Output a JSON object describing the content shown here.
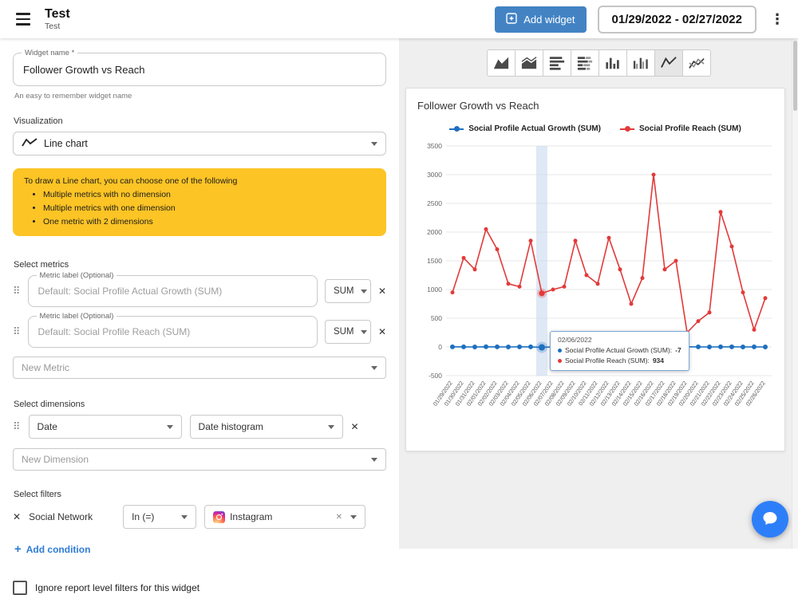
{
  "header": {
    "title": "Test",
    "subtitle": "Test",
    "add_widget_label": "Add widget",
    "date_range": "01/29/2022 - 02/27/2022"
  },
  "editor": {
    "widget_name": {
      "label": "Widget name *",
      "value": "Follower Growth vs Reach",
      "helper": "An easy to remember widget name"
    },
    "visualization": {
      "label": "Visualization",
      "value": "Line chart"
    },
    "hint": {
      "title": "To draw a Line chart, you can choose one of the following",
      "items": [
        "Multiple metrics with no dimension",
        "Multiple metrics with one dimension",
        "One metric with 2 dimensions"
      ]
    },
    "metrics": {
      "label": "Select metrics",
      "new_metric_placeholder": "New Metric",
      "rows": [
        {
          "field_label": "Metric label (Optional)",
          "placeholder": "Default: Social Profile Actual Growth (SUM)",
          "agg": "SUM"
        },
        {
          "field_label": "Metric label (Optional)",
          "placeholder": "Default: Social Profile Reach (SUM)",
          "agg": "SUM"
        }
      ]
    },
    "dimensions": {
      "label": "Select dimensions",
      "new_dimension_placeholder": "New Dimension",
      "rows": [
        {
          "dimension": "Date",
          "histogram": "Date histogram"
        }
      ]
    },
    "filters": {
      "label": "Select filters",
      "add_condition_label": "Add condition",
      "rows": [
        {
          "field": "Social Network",
          "operator": "In (=)",
          "value": "Instagram"
        }
      ]
    },
    "ignore_filters_label": "Ignore report level filters for this widget"
  },
  "preview": {
    "chart_types": [
      "area",
      "stacked-area",
      "bar",
      "stacked-bar",
      "column",
      "grouped-column",
      "line",
      "multi-line"
    ],
    "selected_chart_type": "line"
  },
  "colors": {
    "accent_blue": "#4383c4",
    "warning_yellow": "#fcc425",
    "link_blue": "#2e7cd6",
    "intercom_blue": "#2d7ff9"
  },
  "chart_data": {
    "type": "line",
    "title": "Follower Growth vs Reach",
    "grid": true,
    "legend_position": "top",
    "ylim": [
      -500,
      3500
    ],
    "ytick_step": 500,
    "highlight_index": 8,
    "x": [
      "01/29/2022",
      "01/30/2022",
      "01/31/2022",
      "02/01/2022",
      "02/02/2022",
      "02/03/2022",
      "02/04/2022",
      "02/05/2022",
      "02/06/2022",
      "02/07/2022",
      "02/08/2022",
      "02/09/2022",
      "02/10/2022",
      "02/11/2022",
      "02/12/2022",
      "02/13/2022",
      "02/14/2022",
      "02/15/2022",
      "02/16/2022",
      "02/17/2022",
      "02/18/2022",
      "02/19/2022",
      "02/20/2022",
      "02/21/2022",
      "02/22/2022",
      "02/23/2022",
      "02/24/2022",
      "02/25/2022",
      "02/26/2022"
    ],
    "series": [
      {
        "name": "Social Profile Actual Growth (SUM)",
        "color": "#1e6fbf",
        "values": [
          2,
          1,
          0,
          3,
          1,
          0,
          2,
          1,
          -7,
          1,
          0,
          2,
          1,
          0,
          1,
          2,
          0,
          1,
          3,
          1,
          0,
          2,
          1,
          0,
          1,
          2,
          0,
          1,
          0
        ]
      },
      {
        "name": "Social Profile Reach (SUM)",
        "color": "#e23a3a",
        "values": [
          950,
          1550,
          1350,
          2050,
          1700,
          1100,
          1050,
          1850,
          934,
          1000,
          1050,
          1850,
          1250,
          1100,
          1900,
          1350,
          750,
          1200,
          3000,
          1350,
          1500,
          250,
          450,
          600,
          2350,
          1750,
          950,
          300,
          850
        ]
      }
    ],
    "tooltip": {
      "date": "02/06/2022",
      "lines": [
        {
          "label": "Social Profile Actual Growth (SUM):",
          "value": "-7"
        },
        {
          "label": "Social Profile Reach (SUM):",
          "value": "934"
        }
      ]
    }
  }
}
